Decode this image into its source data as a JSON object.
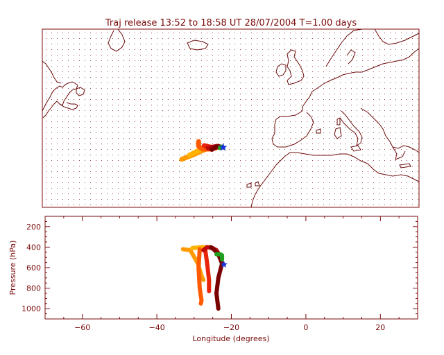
{
  "header": {
    "title": "Traj release 13:52 to 18:58 UT 28/07/2004     T=1.00 days"
  },
  "colors": {
    "axis": "#7a0a0a",
    "map_dots": "#7a0a0a",
    "coast": "#6b0a0a",
    "label": "#7a0a0a",
    "star": "#1a33d9"
  },
  "chart_data": [
    {
      "type": "map",
      "title": "Traj release 13:52 to 18:58 UT 28/07/2004     T=1.00 days",
      "xlim": [
        -70,
        30
      ],
      "ylim": [
        20,
        72
      ],
      "grid": "dotted",
      "release_point": {
        "lon": -22,
        "lat": 37.5,
        "marker": "star",
        "color": "#1a33d9"
      },
      "trajectories": [
        {
          "color": "#ff9a00",
          "points": [
            [
              -33,
              34
            ],
            [
              -30,
              35.3
            ],
            [
              -28,
              36.3
            ],
            [
              -26.5,
              37
            ]
          ]
        },
        {
          "color": "#ffb300",
          "points": [
            [
              -31,
              35.2
            ],
            [
              -29,
              36.3
            ],
            [
              -27.5,
              37
            ]
          ]
        },
        {
          "color": "#ff5a00",
          "points": [
            [
              -28.5,
              39.2
            ],
            [
              -28.5,
              37.8
            ],
            [
              -27.5,
              37
            ],
            [
              -25.5,
              37
            ]
          ]
        },
        {
          "color": "#e8240a",
          "points": [
            [
              -27,
              38
            ],
            [
              -25.5,
              37.6
            ],
            [
              -24,
              37.3
            ]
          ]
        },
        {
          "color": "#c10a0a",
          "points": [
            [
              -26,
              37.3
            ],
            [
              -24.5,
              37.6
            ],
            [
              -23.5,
              37.8
            ]
          ]
        },
        {
          "color": "#7a0000",
          "points": [
            [
              -25,
              36.9
            ],
            [
              -24,
              37.6
            ],
            [
              -23,
              37.7
            ]
          ]
        },
        {
          "color": "#20a020",
          "points": [
            [
              -22.8,
              37.4
            ],
            [
              -22.4,
              37.6
            ]
          ]
        }
      ]
    },
    {
      "type": "line",
      "xlabel": "Longitude  (degrees)",
      "ylabel": "Pressure  (hPa)",
      "xlim": [
        -70,
        30
      ],
      "ylim": [
        1100,
        100
      ],
      "x_ticks": [
        -60,
        -40,
        -20,
        0,
        20
      ],
      "x_tick_labels": [
        "−60",
        "−40",
        "−20",
        "0",
        "20"
      ],
      "y_ticks": [
        200,
        400,
        600,
        800,
        1000
      ],
      "y_tick_labels": [
        "200",
        "400",
        "600",
        "800",
        "1000"
      ],
      "release_point": {
        "lon": -22,
        "pressure": 570,
        "marker": "star",
        "color": "#1a33d9"
      },
      "series": [
        {
          "color": "#ff9a00",
          "points": [
            [
              -33,
              420
            ],
            [
              -31,
              430
            ],
            [
              -29,
              560
            ],
            [
              -28,
              680
            ],
            [
              -27.5,
              720
            ]
          ]
        },
        {
          "color": "#ffb300",
          "points": [
            [
              -30.5,
              410
            ],
            [
              -28,
              400
            ],
            [
              -26,
              400
            ],
            [
              -25,
              410
            ]
          ]
        },
        {
          "color": "#ff5a00",
          "points": [
            [
              -28.5,
              420
            ],
            [
              -28.8,
              600
            ],
            [
              -28.5,
              800
            ],
            [
              -28,
              920
            ],
            [
              -28.2,
              950
            ]
          ]
        },
        {
          "color": "#e8240a",
          "points": [
            [
              -27,
              430
            ],
            [
              -26.5,
              560
            ],
            [
              -26,
              720
            ],
            [
              -26,
              830
            ]
          ]
        },
        {
          "color": "#c10a0a",
          "points": [
            [
              -27.5,
              430
            ],
            [
              -26.5,
              400
            ],
            [
              -25,
              410
            ],
            [
              -24,
              430
            ],
            [
              -23.5,
              460
            ]
          ]
        },
        {
          "color": "#7a0000",
          "points": [
            [
              -25.5,
              400
            ],
            [
              -24.5,
              430
            ],
            [
              -23.5,
              470
            ],
            [
              -22.5,
              560
            ],
            [
              -23.5,
              700
            ],
            [
              -24,
              850
            ],
            [
              -23.5,
              1000
            ]
          ]
        },
        {
          "color": "#20a020",
          "points": [
            [
              -24,
              470
            ],
            [
              -23,
              470
            ],
            [
              -22.5,
              480
            ],
            [
              -22.5,
              520
            ]
          ]
        }
      ]
    }
  ]
}
